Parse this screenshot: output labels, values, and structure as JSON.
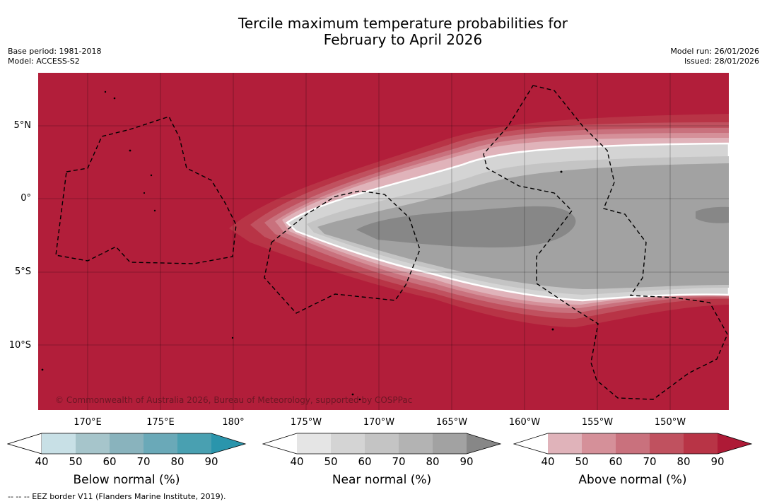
{
  "title": {
    "line1": "Tercile maximum temperature probabilities for",
    "line2": "February to April 2026"
  },
  "meta_left": {
    "base_period": "Base period: 1981-2018",
    "model": "Model: ACCESS-S2"
  },
  "meta_right": {
    "model_run": "Model run: 26/01/2026",
    "issued": "Issued: 28/01/2026"
  },
  "map": {
    "lat_labels": [
      "5°N",
      "0°",
      "5°S",
      "10°S"
    ],
    "lon_labels": [
      "170°E",
      "175°E",
      "180°",
      "175°W",
      "170°W",
      "165°W",
      "160°W",
      "155°W",
      "150°W"
    ],
    "copyright": "© Commonwealth of Australia 2026, Bureau of Meteorology, supported by COSPPac"
  },
  "colorbars": [
    {
      "title": "Below normal (%)",
      "ticks": [
        "40",
        "50",
        "60",
        "70",
        "80",
        "90"
      ],
      "colors": [
        "#ffffff",
        "#c8e0e6",
        "#a6c5cb",
        "#89b3bd",
        "#6aa9b8",
        "#49a0b1",
        "#2a95ac"
      ]
    },
    {
      "title": "Near normal (%)",
      "ticks": [
        "40",
        "50",
        "60",
        "70",
        "80",
        "90"
      ],
      "colors": [
        "#ffffff",
        "#e5e5e5",
        "#d4d4d4",
        "#c4c4c4",
        "#b3b3b3",
        "#a2a2a2",
        "#878787"
      ]
    },
    {
      "title": "Above normal (%)",
      "ticks": [
        "40",
        "50",
        "60",
        "70",
        "80",
        "90"
      ],
      "colors": [
        "#ffffff",
        "#e0b3ba",
        "#d59099",
        "#c9717d",
        "#c0515f",
        "#b83446",
        "#ae1a36"
      ]
    }
  ],
  "footnote": "--  --  -- EEZ border V11 (Flanders Marine Institute, 2019)."
}
